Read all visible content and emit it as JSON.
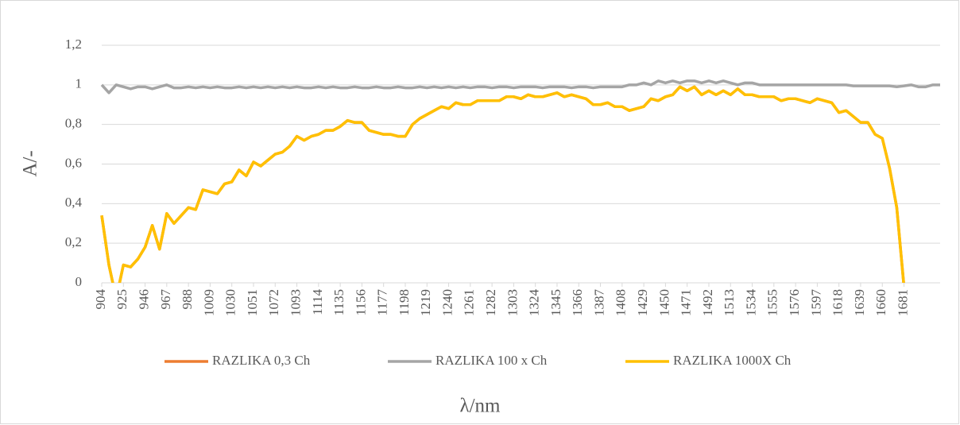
{
  "chart_data": {
    "type": "line",
    "x_label": "λ/nm",
    "y_label": "A/-",
    "x": [
      904,
      911,
      918,
      925,
      932,
      939,
      946,
      953,
      960,
      967,
      974,
      981,
      988,
      995,
      1002,
      1009,
      1016,
      1023,
      1030,
      1037,
      1044,
      1051,
      1058,
      1065,
      1072,
      1079,
      1086,
      1093,
      1100,
      1107,
      1114,
      1121,
      1128,
      1135,
      1142,
      1149,
      1156,
      1163,
      1170,
      1177,
      1184,
      1191,
      1198,
      1205,
      1212,
      1219,
      1226,
      1233,
      1240,
      1247,
      1254,
      1261,
      1268,
      1275,
      1282,
      1289,
      1296,
      1303,
      1310,
      1317,
      1324,
      1331,
      1338,
      1345,
      1352,
      1359,
      1366,
      1373,
      1380,
      1387,
      1394,
      1401,
      1408,
      1415,
      1422,
      1429,
      1436,
      1443,
      1450,
      1457,
      1464,
      1471,
      1478,
      1485,
      1492,
      1499,
      1506,
      1513,
      1520,
      1527,
      1534,
      1541,
      1548,
      1555,
      1562,
      1569,
      1576,
      1583,
      1590,
      1597,
      1604,
      1611,
      1618,
      1625,
      1632,
      1639,
      1646,
      1653,
      1660,
      1667,
      1674,
      1681,
      1688,
      1695,
      1702,
      1709,
      1716
    ],
    "series": [
      {
        "name": "RAZLIKA 0,3 Ch",
        "color": "#ed7d31",
        "values": [
          0.34,
          0.09,
          -0.08,
          0.09,
          0.08,
          0.12,
          0.18,
          0.29,
          0.17,
          0.35,
          0.3,
          0.34,
          0.38,
          0.37,
          0.47,
          0.46,
          0.45,
          0.5,
          0.51,
          0.57,
          0.54,
          0.61,
          0.59,
          0.62,
          0.65,
          0.66,
          0.69,
          0.74,
          0.72,
          0.74,
          0.75,
          0.77,
          0.77,
          0.79,
          0.82,
          0.81,
          0.81,
          0.77,
          0.76,
          0.75,
          0.75,
          0.74,
          0.74,
          0.8,
          0.83,
          0.85,
          0.87,
          0.89,
          0.88,
          0.91,
          0.9,
          0.9,
          0.92,
          0.92,
          0.92,
          0.92,
          0.94,
          0.94,
          0.93,
          0.95,
          0.94,
          0.94,
          0.95,
          0.96,
          0.94,
          0.95,
          0.94,
          0.93,
          0.9,
          0.9,
          0.91,
          0.89,
          0.89,
          0.87,
          0.88,
          0.89,
          0.93,
          0.92,
          0.94,
          0.95,
          0.99,
          0.97,
          0.99,
          0.95,
          0.97,
          0.95,
          0.97,
          0.95,
          0.98,
          0.95,
          0.95,
          0.94,
          0.94,
          0.94,
          0.92,
          0.93,
          0.93,
          0.92,
          0.91,
          0.93,
          0.92,
          0.91,
          0.86,
          0.87,
          0.84,
          0.81,
          0.81,
          0.75,
          0.73,
          0.58,
          0.38,
          -0.02,
          null,
          null,
          null,
          null,
          null
        ]
      },
      {
        "name": "RAZLIKA 100 x Ch",
        "color": "#a5a5a5",
        "values": [
          1.0,
          0.96,
          1.0,
          0.99,
          0.98,
          0.99,
          0.99,
          0.98,
          0.99,
          1.0,
          0.985,
          0.985,
          0.99,
          0.985,
          0.99,
          0.985,
          0.99,
          0.985,
          0.985,
          0.99,
          0.985,
          0.99,
          0.985,
          0.99,
          0.985,
          0.99,
          0.985,
          0.99,
          0.985,
          0.985,
          0.99,
          0.985,
          0.99,
          0.985,
          0.985,
          0.99,
          0.985,
          0.985,
          0.99,
          0.985,
          0.985,
          0.99,
          0.985,
          0.985,
          0.99,
          0.985,
          0.99,
          0.985,
          0.99,
          0.985,
          0.99,
          0.985,
          0.99,
          0.99,
          0.985,
          0.99,
          0.99,
          0.985,
          0.99,
          0.99,
          0.99,
          0.985,
          0.99,
          0.99,
          0.99,
          0.985,
          0.99,
          0.99,
          0.985,
          0.99,
          0.99,
          0.99,
          0.99,
          1.0,
          1.0,
          1.01,
          1.0,
          1.02,
          1.01,
          1.02,
          1.01,
          1.02,
          1.02,
          1.01,
          1.02,
          1.01,
          1.02,
          1.01,
          1.0,
          1.01,
          1.01,
          1.0,
          1.0,
          1.0,
          1.0,
          1.0,
          1.0,
          1.0,
          1.0,
          1.0,
          1.0,
          1.0,
          1.0,
          1.0,
          0.995,
          0.995,
          0.995,
          0.995,
          0.995,
          0.995,
          0.99,
          0.995,
          1.0,
          0.99,
          0.99,
          1.0,
          1.0
        ]
      },
      {
        "name": "RAZLIKA 1000X Ch",
        "color": "#ffc000",
        "values": [
          0.34,
          0.09,
          -0.08,
          0.09,
          0.08,
          0.12,
          0.18,
          0.29,
          0.17,
          0.35,
          0.3,
          0.34,
          0.38,
          0.37,
          0.47,
          0.46,
          0.45,
          0.5,
          0.51,
          0.57,
          0.54,
          0.61,
          0.59,
          0.62,
          0.65,
          0.66,
          0.69,
          0.74,
          0.72,
          0.74,
          0.75,
          0.77,
          0.77,
          0.79,
          0.82,
          0.81,
          0.81,
          0.77,
          0.76,
          0.75,
          0.75,
          0.74,
          0.74,
          0.8,
          0.83,
          0.85,
          0.87,
          0.89,
          0.88,
          0.91,
          0.9,
          0.9,
          0.92,
          0.92,
          0.92,
          0.92,
          0.94,
          0.94,
          0.93,
          0.95,
          0.94,
          0.94,
          0.95,
          0.96,
          0.94,
          0.95,
          0.94,
          0.93,
          0.9,
          0.9,
          0.91,
          0.89,
          0.89,
          0.87,
          0.88,
          0.89,
          0.93,
          0.92,
          0.94,
          0.95,
          0.99,
          0.97,
          0.99,
          0.95,
          0.97,
          0.95,
          0.97,
          0.95,
          0.98,
          0.95,
          0.95,
          0.94,
          0.94,
          0.94,
          0.92,
          0.93,
          0.93,
          0.92,
          0.91,
          0.93,
          0.92,
          0.91,
          0.86,
          0.87,
          0.84,
          0.81,
          0.81,
          0.75,
          0.73,
          0.58,
          0.38,
          -0.02,
          null,
          null,
          null,
          null,
          null
        ]
      }
    ],
    "xlim": [
      904,
      1716
    ],
    "xticks": [
      904,
      925,
      946,
      967,
      988,
      1009,
      1030,
      1051,
      1072,
      1093,
      1114,
      1135,
      1156,
      1177,
      1198,
      1219,
      1240,
      1261,
      1282,
      1303,
      1324,
      1345,
      1366,
      1387,
      1408,
      1429,
      1450,
      1471,
      1492,
      1513,
      1534,
      1555,
      1576,
      1597,
      1618,
      1639,
      1660,
      1681
    ],
    "ylim": [
      0,
      1.2
    ],
    "yticks": [
      0,
      {
        "value": 0.2,
        "label": "0,2"
      },
      {
        "value": 0.4,
        "label": "0,4"
      },
      {
        "value": 0.6,
        "label": "0,6"
      },
      {
        "value": 0.8,
        "label": "0,8"
      },
      1,
      {
        "value": 1.2,
        "label": "1,2"
      }
    ],
    "grid": true,
    "legend": "bottom"
  }
}
